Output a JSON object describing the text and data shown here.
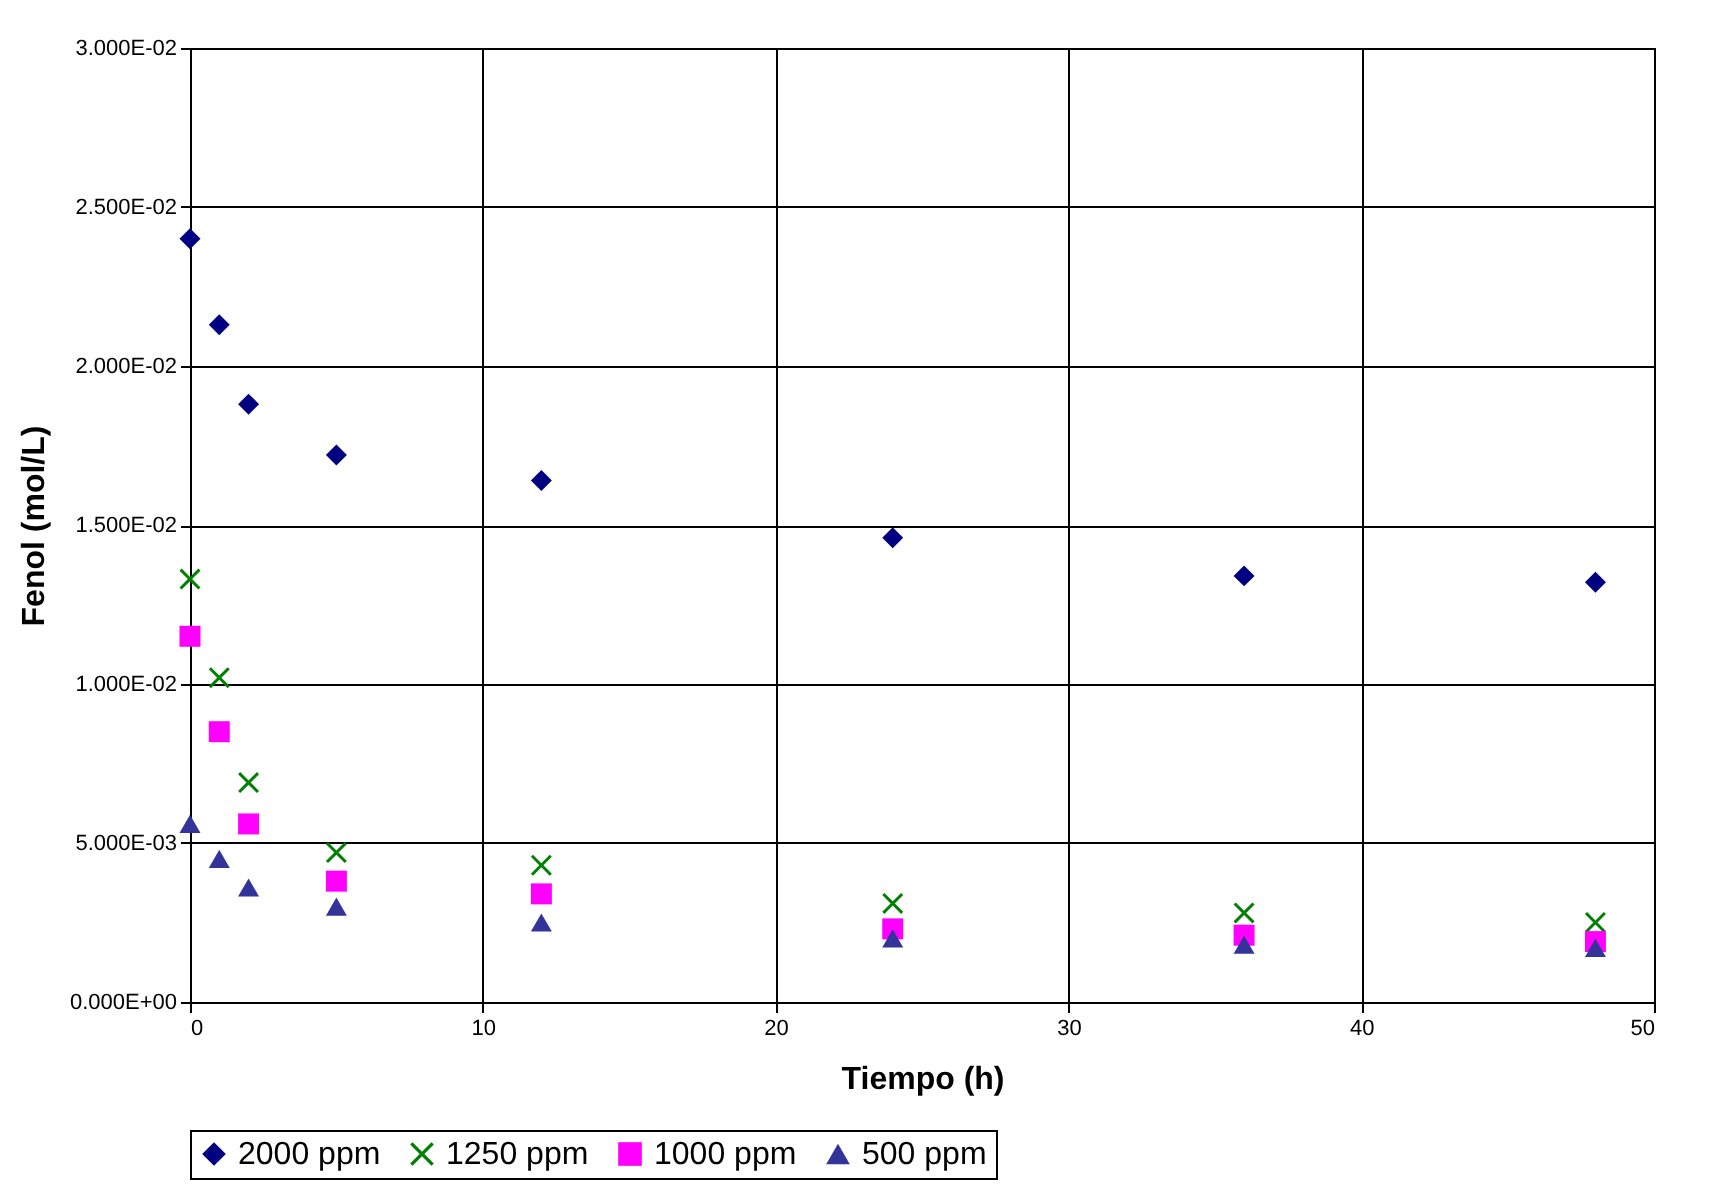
{
  "chart_data": {
    "type": "scatter",
    "xlabel": "Tiempo (h)",
    "ylabel": "Fenol (mol/L)",
    "x": [
      0,
      1,
      2,
      5,
      12,
      24,
      36,
      48
    ],
    "series": [
      {
        "name": "2000 ppm",
        "color": "#000080",
        "marker": "diamond",
        "values": [
          0.024,
          0.0213,
          0.0188,
          0.0172,
          0.0164,
          0.0146,
          0.0134,
          0.0132
        ]
      },
      {
        "name": "1250 ppm",
        "color": "#008000",
        "marker": "cross",
        "values": [
          0.0133,
          0.0102,
          0.0069,
          0.0047,
          0.0043,
          0.0031,
          0.0028,
          0.0025
        ]
      },
      {
        "name": "1000 ppm",
        "color": "#ff00ff",
        "marker": "square",
        "values": [
          0.0115,
          0.0085,
          0.0056,
          0.0038,
          0.0034,
          0.0023,
          0.0021,
          0.0019
        ]
      },
      {
        "name": "500 ppm",
        "color": "#333399",
        "marker": "triangle",
        "values": [
          0.0056,
          0.0045,
          0.0036,
          0.003,
          0.0025,
          0.002,
          0.0018,
          0.0017
        ]
      }
    ],
    "xlim": [
      0,
      50
    ],
    "xticks": [
      0,
      10,
      20,
      30,
      40,
      50
    ],
    "ylim": [
      0,
      0.03
    ],
    "yticks": [
      {
        "value": 0,
        "label": "0.000E+00"
      },
      {
        "value": 0.005,
        "label": "5.000E-03"
      },
      {
        "value": 0.01,
        "label": "1.000E-02"
      },
      {
        "value": 0.015,
        "label": "1.500E-02"
      },
      {
        "value": 0.02,
        "label": "2.000E-02"
      },
      {
        "value": 0.025,
        "label": "2.500E-02"
      },
      {
        "value": 0.03,
        "label": "3.000E-02"
      }
    ],
    "grid": true,
    "legend": "bottom"
  }
}
